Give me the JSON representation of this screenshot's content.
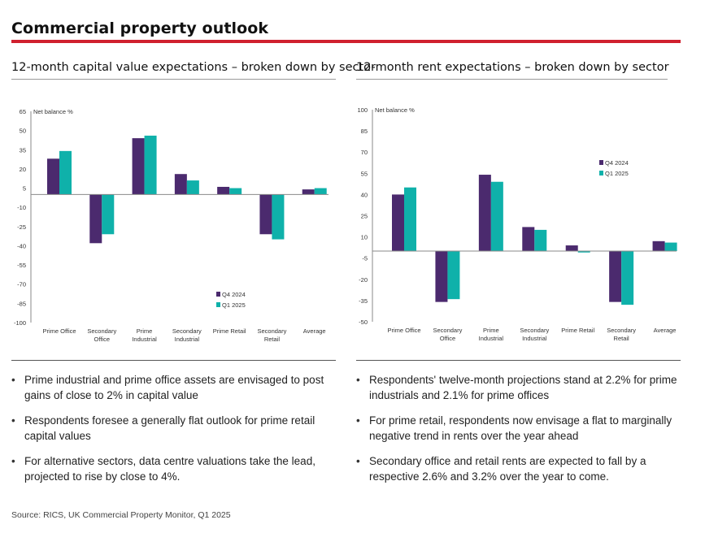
{
  "page": {
    "title": "Commercial property outlook",
    "source": "Source: RICS, UK Commercial Property Monitor, Q1 2025"
  },
  "colors": {
    "q4_2024": "#4b2a6e",
    "q1_2025": "#0fb1aa",
    "accent_rule": "#d0202e"
  },
  "chart_data": [
    {
      "type": "bar",
      "title": "12-month capital value expectations – broken down by sector",
      "ylabel": "Net balance %",
      "ylim": [
        -100,
        65
      ],
      "yticks": [
        65,
        50,
        35,
        20,
        5,
        -10,
        -25,
        -40,
        -55,
        -70,
        -85,
        -100
      ],
      "categories": [
        "Prime Office",
        "Secondary Office",
        "Prime Industrial",
        "Secondary Industrial",
        "Prime Retail",
        "Secondary Retail",
        "Average"
      ],
      "category_lines": [
        [
          "Prime Office"
        ],
        [
          "Secondary",
          "Office"
        ],
        [
          "Prime",
          "Industrial"
        ],
        [
          "Secondary",
          "Industrial"
        ],
        [
          "Prime Retail"
        ],
        [
          "Secondary",
          "Retail"
        ],
        [
          "Average"
        ]
      ],
      "series": [
        {
          "name": "Q4 2024",
          "values": [
            28,
            -38,
            44,
            16,
            6,
            -31,
            4
          ]
        },
        {
          "name": "Q1 2025",
          "values": [
            34,
            -31,
            46,
            11,
            5,
            -35,
            5
          ]
        }
      ],
      "legend_position": "bottom-right",
      "grid": false,
      "bullets": [
        "Prime industrial and prime office assets are envisaged to post gains of close to 2% in capital value",
        "Respondents foresee a generally flat outlook for prime retail capital values",
        "For alternative sectors, data centre valuations take the lead, projected to rise by close to 4%."
      ]
    },
    {
      "type": "bar",
      "title": "12-month rent expectations – broken down by sector",
      "ylabel": "Net balance %",
      "ylim": [
        -50,
        100
      ],
      "yticks": [
        100,
        85,
        70,
        55,
        40,
        25,
        10,
        -5,
        -20,
        -35,
        -50
      ],
      "categories": [
        "Prime Office",
        "Secondary Office",
        "Prime Industrial",
        "Secondary Industrial",
        "Prime Retail",
        "Secondary Retail",
        "Average"
      ],
      "category_lines": [
        [
          "Prime Office"
        ],
        [
          "Secondary",
          "Office"
        ],
        [
          "Prime",
          "Industrial"
        ],
        [
          "Secondary",
          "Industrial"
        ],
        [
          "Prime Retail"
        ],
        [
          "Secondary",
          "Retail"
        ],
        [
          "Average"
        ]
      ],
      "series": [
        {
          "name": "Q4 2024",
          "values": [
            40,
            -36,
            54,
            17,
            4,
            -36,
            7
          ]
        },
        {
          "name": "Q1 2025",
          "values": [
            45,
            -34,
            49,
            15,
            -1,
            -38,
            6
          ]
        }
      ],
      "legend_position": "top-right",
      "grid": false,
      "bullets": [
        "Respondents' twelve-month projections stand at 2.2% for prime industrials and 2.1% for prime offices",
        "For prime retail, respondents now envisage a flat to marginally negative trend in rents over the year ahead",
        "Secondary office and retail rents are expected to fall by a respective 2.6% and 3.2% over the year to come."
      ]
    }
  ]
}
